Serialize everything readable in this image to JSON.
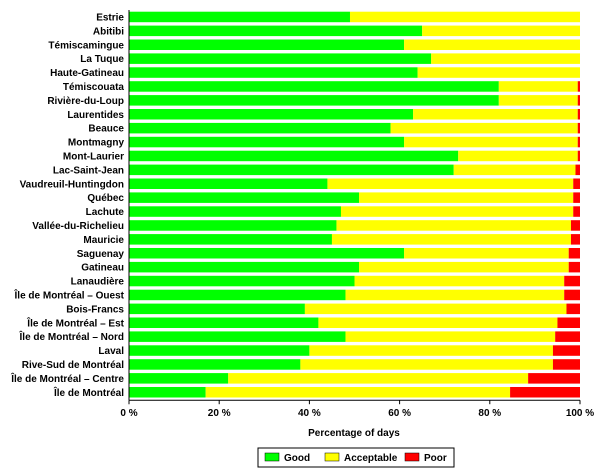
{
  "chart_data": {
    "type": "bar",
    "orientation": "horizontal",
    "stacked": true,
    "percent_stacked": true,
    "categories": [
      "Estrie",
      "Abitibi",
      "Témiscamingue",
      "La Tuque",
      "Haute-Gatineau",
      "Témiscouata",
      "Rivière-du-Loup",
      "Laurentides",
      "Beauce",
      "Montmagny",
      "Mont-Laurier",
      "Lac-Saint-Jean",
      "Vaudreuil-Huntingdon",
      "Québec",
      "Lachute",
      "Vallée-du-Richelieu",
      "Mauricie",
      "Saguenay",
      "Gatineau",
      "Lanaudière",
      "Île de Montréal – Ouest",
      "Bois-Francs",
      "Île de Montréal – Est",
      "Île de Montréal – Nord",
      "Laval",
      "Rive-Sud de Montréal",
      "Île de Montréal – Centre",
      "Île de Montréal"
    ],
    "series": [
      {
        "name": "Good",
        "color": "#00ff00",
        "values": [
          49,
          65,
          61,
          67,
          64,
          82,
          82,
          63,
          58,
          61,
          73,
          72,
          44,
          51,
          47,
          46,
          45,
          61,
          51,
          50,
          48,
          39,
          42,
          48,
          40,
          38,
          22,
          17
        ]
      },
      {
        "name": "Acceptable",
        "color": "#ffff00",
        "values": [
          51,
          35,
          39,
          33,
          36,
          17.5,
          17.5,
          36.5,
          41.5,
          38.5,
          26.5,
          27,
          54.5,
          47.5,
          51.5,
          52,
          53,
          36.5,
          46.5,
          46.5,
          48.5,
          58,
          53,
          46.5,
          54,
          56,
          66.5,
          67.5
        ]
      },
      {
        "name": "Poor",
        "color": "#ff0000",
        "values": [
          0,
          0,
          0,
          0,
          0,
          0.5,
          0.5,
          0.5,
          0.5,
          0.5,
          0.5,
          1,
          1.5,
          1.5,
          1.5,
          2,
          2,
          2.5,
          2.5,
          3.5,
          3.5,
          3,
          5,
          5.5,
          6,
          6,
          11.5,
          15.5
        ]
      }
    ],
    "xlabel": "Percentage of days",
    "x_ticks": [
      "0 %",
      "20 %",
      "40 %",
      "60 %",
      "80 %",
      "100 %"
    ],
    "xlim": [
      0,
      100
    ],
    "grid": false,
    "legend_position": "bottom"
  }
}
